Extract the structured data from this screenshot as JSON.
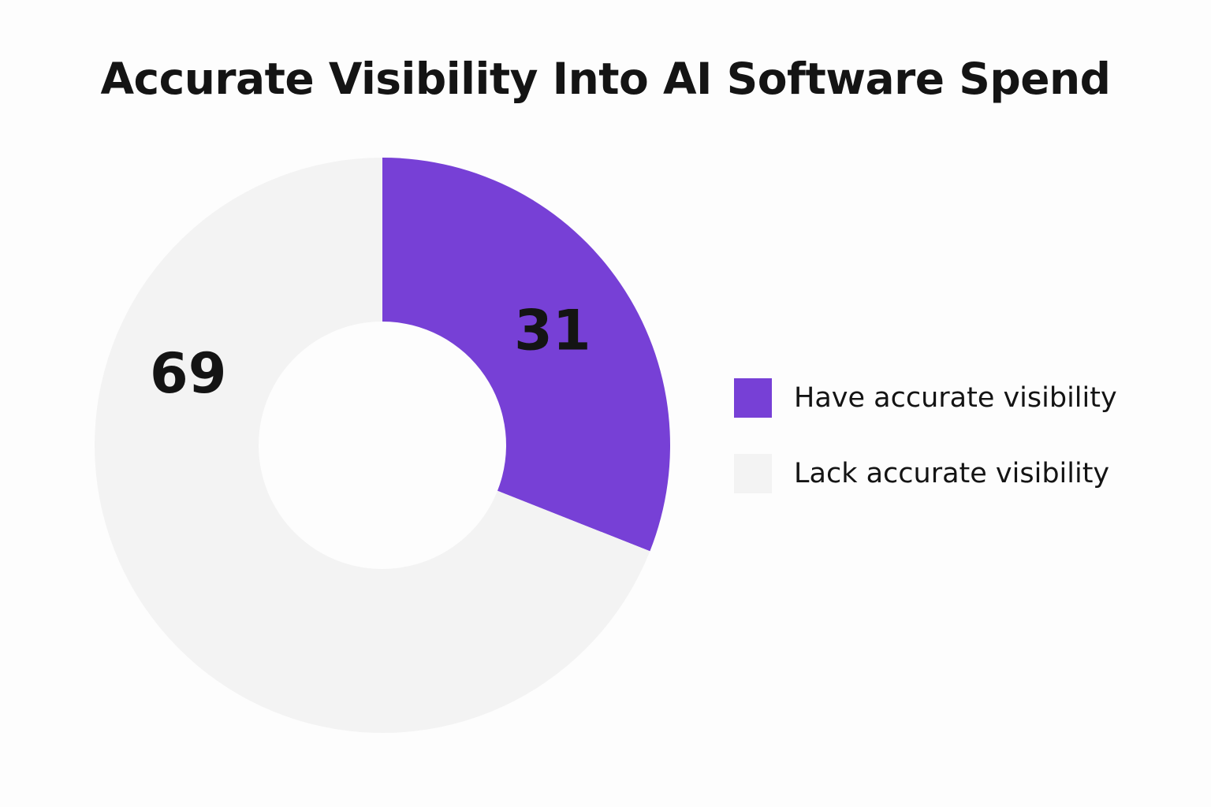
{
  "chart_data": {
    "type": "pie",
    "title": "Accurate Visibility Into AI Software Spend",
    "slices": [
      {
        "label": "Have accurate visibility",
        "value": 31,
        "color": "#7740d6"
      },
      {
        "label": "Lack accurate visibility",
        "value": 69,
        "color": "#f3f3f3"
      }
    ],
    "legend_position": "right"
  }
}
